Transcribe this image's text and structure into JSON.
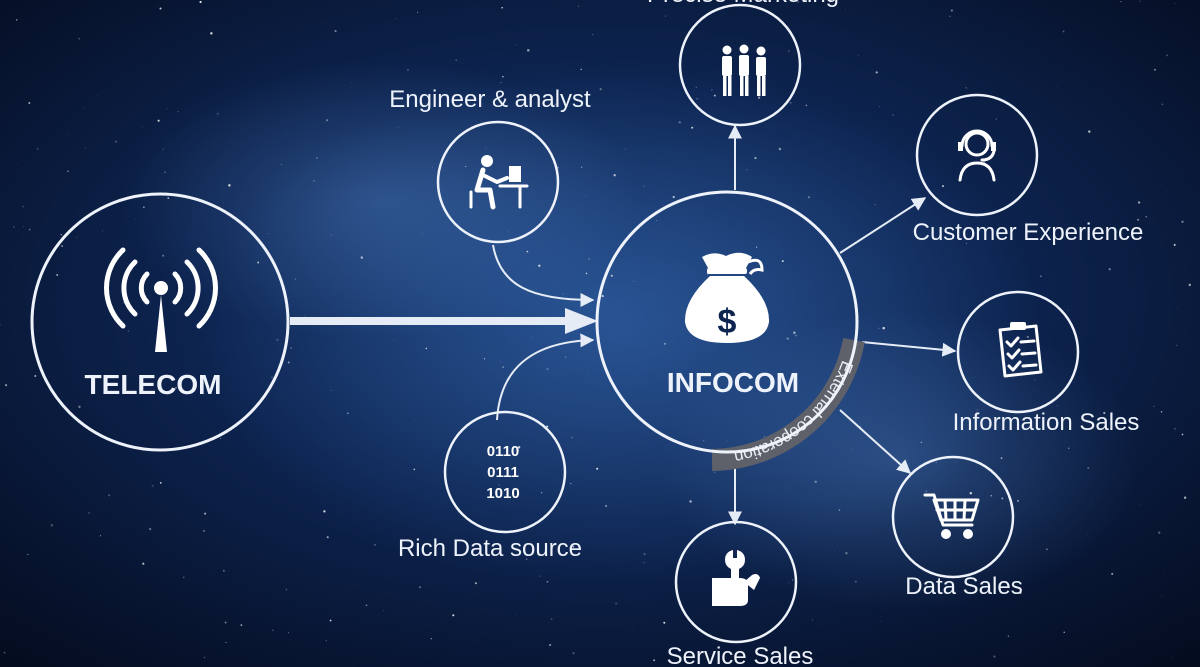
{
  "colors": {
    "background": "#0a1a3a",
    "line": "#e6ecf6",
    "arc": "#5e6169",
    "text": "#eef3fb"
  },
  "hubs": {
    "telecom": {
      "label": "TELECOM",
      "icon": "antenna-signal-icon"
    },
    "infocom": {
      "label": "INFOCOM",
      "icon": "money-bag-icon"
    }
  },
  "arc_label": "External cooperation",
  "inputs": [
    {
      "id": "engineer",
      "label": "Engineer & analyst",
      "icon": "engineer-at-computer-icon"
    },
    {
      "id": "rich-data",
      "label": "Rich Data source",
      "icon": "binary-code-icon",
      "code_lines": [
        "0110",
        "0111",
        "1010"
      ]
    }
  ],
  "outputs": [
    {
      "id": "precise-marketing",
      "label": "Precise Marketing",
      "icon": "people-group-icon"
    },
    {
      "id": "customer-experience",
      "label": "Customer Experience",
      "icon": "headset-agent-icon"
    },
    {
      "id": "information-sales",
      "label": "Information Sales",
      "icon": "clipboard-checklist-icon"
    },
    {
      "id": "data-sales",
      "label": "Data Sales",
      "icon": "shopping-cart-icon"
    },
    {
      "id": "service-sales",
      "label": "Service Sales",
      "icon": "wrench-hand-icon"
    }
  ]
}
